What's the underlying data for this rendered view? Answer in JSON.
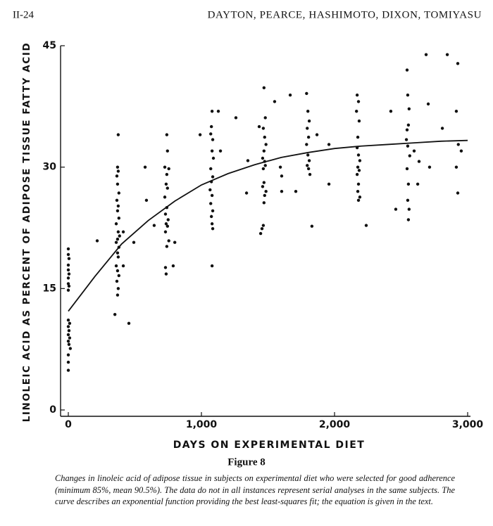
{
  "header": {
    "page": "II-24",
    "authors": "DAYTON, PEARCE, HASHIMOTO, DIXON, TOMIYASU"
  },
  "chart_data": {
    "type": "scatter",
    "x_label": "DAYS ON EXPERIMENTAL DIET",
    "y_label": "LINOLEIC ACID AS PERCENT OF ADIPOSE TISSUE FATTY ACID",
    "xlim": [
      0,
      3000
    ],
    "xticks": [
      0,
      {
        "value": 1000,
        "label": "1,000"
      },
      {
        "value": 2000,
        "label": "2,000"
      },
      {
        "value": 3000,
        "label": "3,000"
      }
    ],
    "ylim": [
      0,
      45
    ],
    "yticks": [
      0,
      15,
      30,
      45
    ],
    "series": [
      {
        "type": "scatter",
        "color": "#111111",
        "x": [
          0,
          0,
          5,
          0,
          0,
          5,
          0,
          0,
          5,
          0,
          0,
          10,
          0,
          5,
          0,
          10,
          0,
          5,
          15,
          0,
          0,
          0,
          375,
          370,
          375,
          365,
          370,
          380,
          365,
          375,
          370,
          380,
          360,
          375,
          385,
          370,
          360,
          380,
          370,
          375,
          360,
          370,
          380,
          365,
          375,
          370,
          350,
          413,
          413,
          455,
          492,
          217,
          577,
          645,
          587,
          740,
          745,
          725,
          755,
          740,
          735,
          745,
          725,
          740,
          730,
          750,
          735,
          745,
          730,
          755,
          740,
          730,
          735,
          788,
          800,
          1080,
          1075,
          1070,
          1085,
          1080,
          1090,
          1070,
          1085,
          1075,
          1065,
          1080,
          1070,
          1085,
          1075,
          1080,
          1085,
          1080,
          990,
          1143,
          1127,
          1259,
          1349,
          1339,
          1470,
          1480,
          1465,
          1475,
          1485,
          1470,
          1460,
          1475,
          1480,
          1465,
          1470,
          1460,
          1485,
          1475,
          1470,
          1465,
          1455,
          1445,
          1434,
          1550,
          1593,
          1603,
          1603,
          1667,
          1709,
          1790,
          1800,
          1810,
          1795,
          1805,
          1790,
          1800,
          1810,
          1795,
          1805,
          1815,
          1830,
          1868,
          1958,
          1958,
          2170,
          2180,
          2165,
          2185,
          2175,
          2170,
          2180,
          2190,
          2175,
          2185,
          2170,
          2180,
          2175,
          2190,
          2180,
          2238,
          2423,
          2460,
          2545,
          2550,
          2560,
          2555,
          2545,
          2540,
          2550,
          2565,
          2545,
          2555,
          2550,
          2560,
          2555,
          2598,
          2635,
          2625,
          2714,
          2704,
          2688,
          2847,
          2810,
          2915,
          2926,
          2930,
          2915,
          2926,
          2952
        ],
        "values": [
          19.9,
          19.2,
          18.7,
          17.9,
          17.3,
          16.8,
          16.3,
          15.6,
          15.3,
          14.8,
          11.1,
          10.7,
          10.3,
          9.8,
          9.3,
          8.9,
          8.5,
          8.1,
          7.6,
          6.8,
          5.9,
          4.9,
          34.0,
          30.0,
          29.5,
          28.9,
          27.9,
          26.8,
          25.9,
          25.2,
          24.6,
          23.7,
          23.0,
          22.0,
          21.5,
          21.1,
          20.7,
          20.1,
          19.4,
          18.9,
          17.8,
          17.2,
          16.6,
          15.9,
          15.0,
          14.2,
          11.8,
          17.8,
          22.0,
          10.7,
          20.7,
          20.9,
          30.0,
          22.8,
          25.9,
          34.0,
          32.0,
          30.0,
          29.8,
          29.1,
          27.9,
          27.4,
          26.3,
          25.0,
          24.2,
          23.5,
          23.0,
          22.7,
          22.0,
          20.9,
          20.2,
          17.6,
          16.8,
          17.8,
          20.7,
          36.9,
          35.0,
          34.1,
          33.4,
          32.0,
          31.1,
          29.8,
          28.8,
          28.2,
          27.2,
          26.5,
          25.5,
          24.6,
          23.9,
          23.0,
          22.4,
          17.8,
          34.0,
          32.0,
          36.9,
          36.1,
          30.8,
          26.8,
          39.8,
          36.1,
          34.8,
          33.7,
          32.8,
          32.0,
          31.1,
          30.7,
          30.2,
          29.8,
          28.1,
          27.6,
          27.0,
          26.5,
          25.6,
          22.8,
          22.4,
          21.8,
          35.0,
          38.1,
          30.0,
          28.9,
          27.0,
          38.9,
          27.0,
          39.1,
          36.9,
          35.7,
          34.8,
          33.7,
          32.8,
          31.5,
          30.8,
          30.2,
          29.8,
          29.1,
          22.7,
          34.0,
          32.8,
          27.9,
          38.9,
          38.1,
          36.9,
          35.7,
          33.7,
          32.4,
          31.5,
          30.8,
          30.0,
          29.6,
          29.1,
          27.9,
          27.0,
          26.3,
          25.9,
          22.8,
          36.9,
          24.8,
          42.0,
          38.9,
          37.2,
          35.2,
          34.6,
          33.4,
          32.6,
          31.4,
          29.8,
          27.9,
          25.9,
          24.8,
          23.5,
          32.0,
          30.7,
          27.9,
          30.0,
          37.8,
          43.9,
          43.9,
          34.8,
          36.9,
          42.8,
          32.8,
          30.0,
          26.8,
          32.0
        ]
      },
      {
        "type": "line",
        "color": "#111111",
        "x": [
          0,
          200,
          400,
          600,
          800,
          1000,
          1200,
          1400,
          1600,
          1800,
          2000,
          2200,
          2400,
          2600,
          2800,
          3000
        ],
        "values": [
          12.2,
          16.5,
          20.5,
          23.4,
          25.8,
          27.8,
          29.2,
          30.3,
          31.2,
          31.8,
          32.3,
          32.6,
          32.8,
          33.0,
          33.2,
          33.3
        ]
      }
    ]
  },
  "figure_label": "Figure 8",
  "caption": "Changes in linoleic acid of adipose tissue in subjects on experimental diet who were selected for good adherence (minimum 85%, mean 90.5%). The data do not in all instances represent serial analyses in the same subjects. The curve describes an exponential function providing the best least-squares fit; the equation is given in the text."
}
